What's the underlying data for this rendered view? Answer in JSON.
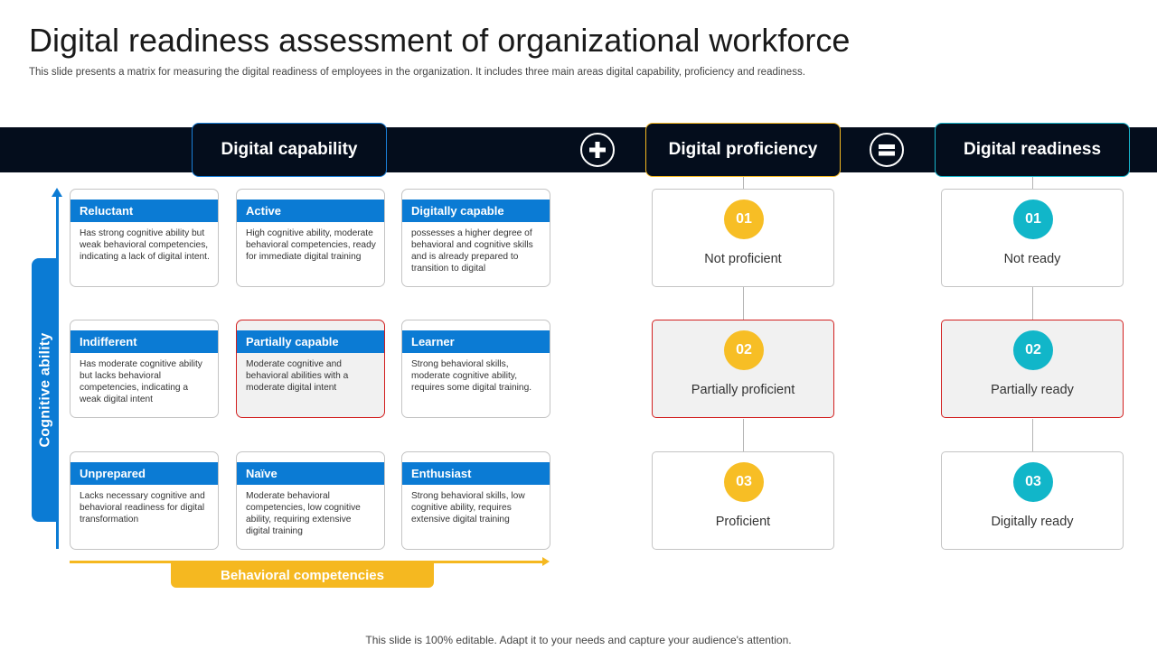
{
  "title": "Digital readiness assessment of organizational workforce",
  "subtitle": "This slide presents a matrix for measuring the digital readiness of employees in the organization. It includes three main areas digital capability, proficiency and readiness.",
  "headers": {
    "capability": "Digital capability",
    "proficiency": "Digital proficiency",
    "readiness": "Digital readiness",
    "plus_icon": "plus-icon",
    "equals_icon": "equals-icon"
  },
  "axes": {
    "vertical": "Cognitive ability",
    "horizontal": "Behavioral competencies"
  },
  "matrix": [
    [
      {
        "title": "Reluctant",
        "desc": "Has strong cognitive ability but weak behavioral competencies, indicating a lack of digital intent.",
        "highlight": false
      },
      {
        "title": "Active",
        "desc": "High cognitive ability, moderate behavioral competencies, ready for immediate digital training",
        "highlight": false
      },
      {
        "title": "Digitally capable",
        "desc": "possesses a higher degree of behavioral and cognitive skills and is already prepared to transition to digital",
        "highlight": false
      }
    ],
    [
      {
        "title": "Indifferent",
        "desc": "Has moderate cognitive ability but lacks behavioral competencies, indicating a weak digital intent",
        "highlight": false
      },
      {
        "title": "Partially capable",
        "desc": "Moderate cognitive and behavioral abilities with a moderate digital intent",
        "highlight": true
      },
      {
        "title": "Learner",
        "desc": "Strong behavioral skills, moderate cognitive ability, requires some digital training.",
        "highlight": false
      }
    ],
    [
      {
        "title": "Unprepared",
        "desc": "Lacks necessary cognitive and behavioral readiness for digital transformation",
        "highlight": false
      },
      {
        "title": "Naïve",
        "desc": "Moderate behavioral competencies, low cognitive ability, requiring extensive digital training",
        "highlight": false
      },
      {
        "title": "Enthusiast",
        "desc": "Strong behavioral skills, low cognitive ability, requires extensive digital training",
        "highlight": false
      }
    ]
  ],
  "proficiency": [
    {
      "num": "01",
      "label": "Not proficient",
      "highlight": false
    },
    {
      "num": "02",
      "label": "Partially proficient",
      "highlight": true
    },
    {
      "num": "03",
      "label": "Proficient",
      "highlight": false
    }
  ],
  "readiness": [
    {
      "num": "01",
      "label": "Not ready",
      "highlight": false
    },
    {
      "num": "02",
      "label": "Partially ready",
      "highlight": true
    },
    {
      "num": "03",
      "label": "Digitally ready",
      "highlight": false
    }
  ],
  "colors": {
    "band": "#040d1c",
    "blue": "#0b7bd4",
    "yellow": "#f7be25",
    "cyan": "#11b6c9",
    "highlight_border": "#d21f1f"
  },
  "footer": "This slide is 100% editable. Adapt it to your needs and capture your audience's attention."
}
